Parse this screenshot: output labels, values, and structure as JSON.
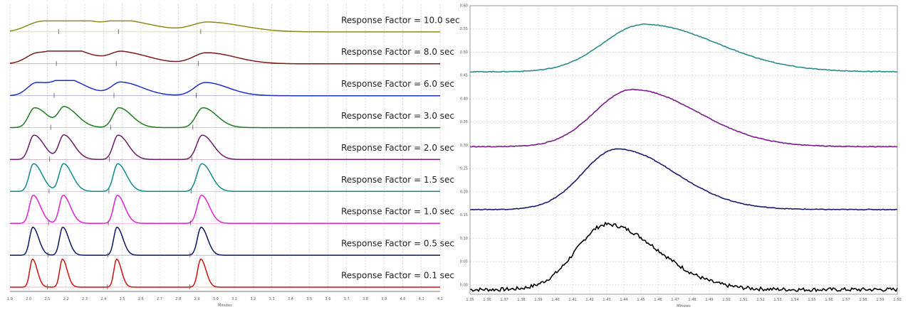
{
  "chart_data": [
    {
      "type": "line",
      "name": "",
      "xlabel": "Minutes",
      "xlim": [
        1.9,
        4.2
      ],
      "x_ticks": [
        "1.9",
        "2.0",
        "2.1",
        "2.2",
        "2.3",
        "2.4",
        "2.5",
        "2.6",
        "2.7",
        "2.8",
        "2.9",
        "3.0",
        "3.1",
        "3.2",
        "3.3",
        "3.4",
        "3.5",
        "3.6",
        "3.7",
        "3.8",
        "3.9",
        "4.0",
        "4.1",
        "4.2"
      ],
      "grid": true,
      "peak_times_min": [
        2.02,
        2.18,
        2.47,
        2.92
      ],
      "series": [
        {
          "name": "Response Factor = 10.0 sec",
          "label": "Response Factor = 10.0 sec",
          "color": "#8c8a1e",
          "response_factor_sec": 10.0
        },
        {
          "name": "Response Factor = 8.0 sec",
          "label": "Response Factor = 8.0 sec",
          "color": "#7a1a1a",
          "response_factor_sec": 8.0
        },
        {
          "name": "Response Factor = 6.0 sec",
          "label": "Response Factor = 6.0 sec",
          "color": "#1f2fc0",
          "response_factor_sec": 6.0
        },
        {
          "name": "Response Factor = 3.0 sec",
          "label": "Response Factor = 3.0 sec",
          "color": "#1e7a1e",
          "response_factor_sec": 3.0
        },
        {
          "name": "Response Factor = 2.0 sec",
          "label": "Response Factor = 2.0 sec",
          "color": "#6a1a6a",
          "response_factor_sec": 2.0
        },
        {
          "name": "Response Factor = 1.5 sec",
          "label": "Response Factor = 1.5 sec",
          "color": "#108a8a",
          "response_factor_sec": 1.5
        },
        {
          "name": "Response Factor = 1.0 sec",
          "label": "Response Factor = 1.0 sec",
          "color": "#e020d0",
          "response_factor_sec": 1.0
        },
        {
          "name": "Response Factor = 0.5 sec",
          "label": "Response Factor = 0.5 sec",
          "color": "#0c1560",
          "response_factor_sec": 0.5
        },
        {
          "name": "Response Factor = 0.1 sec",
          "label": "Response Factor = 0.1 sec",
          "color": "#d01010",
          "response_factor_sec": 0.1
        }
      ]
    },
    {
      "type": "line",
      "name": "",
      "xlabel": "Minutes",
      "xlim": [
        1.35,
        1.6
      ],
      "ylim": [
        -0.02,
        0.6
      ],
      "x_ticks": [
        "1.35",
        "1.36",
        "1.37",
        "1.38",
        "1.39",
        "1.40",
        "1.41",
        "1.42",
        "1.43",
        "1.44",
        "1.45",
        "1.46",
        "1.47",
        "1.48",
        "1.49",
        "1.50",
        "1.51",
        "1.52",
        "1.53",
        "1.54",
        "1.55",
        "1.56",
        "1.57",
        "1.58",
        "1.59",
        "1.60"
      ],
      "y_ticks": [
        "0.00",
        "0.05",
        "0.10",
        "0.15",
        "0.20",
        "0.25",
        "0.30",
        "0.35",
        "0.40",
        "0.45",
        "0.50",
        "0.55",
        "0.60"
      ],
      "grid": true,
      "series": [
        {
          "color": "#000000",
          "baseline": -0.01,
          "apex_x": 1.43,
          "apex_y": 0.13
        },
        {
          "color": "#1a1a6e",
          "baseline": 0.162,
          "apex_x": 1.436,
          "apex_y": 0.292
        },
        {
          "color": "#7a1a8a",
          "baseline": 0.297,
          "apex_x": 1.445,
          "apex_y": 0.42
        },
        {
          "color": "#2a8a8a",
          "baseline": 0.458,
          "apex_x": 1.452,
          "apex_y": 0.56
        }
      ]
    }
  ]
}
